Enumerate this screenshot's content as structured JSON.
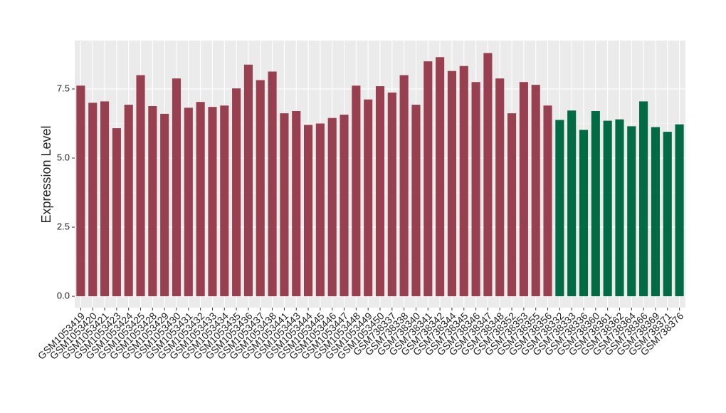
{
  "chart_data": {
    "type": "bar",
    "ylabel": "Expression Level",
    "categories": [
      "GSM1053419",
      "GSM1053420",
      "GSM1053421",
      "GSM1053423",
      "GSM1053424",
      "GSM1053425",
      "GSM1053428",
      "GSM1053429",
      "GSM1053430",
      "GSM1053431",
      "GSM1053432",
      "GSM1053433",
      "GSM1053434",
      "GSM1053435",
      "GSM1053436",
      "GSM1053437",
      "GSM1053438",
      "GSM1053441",
      "GSM1053443",
      "GSM1053444",
      "GSM1053445",
      "GSM1053446",
      "GSM1053447",
      "GSM1053448",
      "GSM1053449",
      "GSM1053450",
      "GSM738337",
      "GSM738338",
      "GSM738340",
      "GSM738341",
      "GSM738342",
      "GSM738344",
      "GSM738345",
      "GSM738346",
      "GSM738347",
      "GSM738348",
      "GSM738352",
      "GSM738353",
      "GSM738355",
      "GSM738356",
      "GSM738332",
      "GSM738333",
      "GSM738336",
      "GSM738360",
      "GSM738361",
      "GSM738362",
      "GSM738364",
      "GSM738366",
      "GSM738369",
      "GSM738371",
      "GSM738376"
    ],
    "values": [
      7.62,
      7.0,
      7.05,
      6.08,
      6.93,
      8.0,
      6.88,
      6.6,
      7.88,
      6.82,
      7.03,
      6.85,
      6.9,
      7.52,
      8.38,
      7.82,
      8.13,
      6.62,
      6.7,
      6.2,
      6.25,
      6.45,
      6.57,
      7.62,
      7.12,
      7.6,
      7.37,
      8.0,
      6.93,
      8.5,
      8.65,
      8.15,
      8.33,
      7.75,
      8.8,
      7.88,
      6.62,
      7.75,
      7.65,
      6.9,
      6.38,
      6.72,
      6.02,
      6.7,
      6.35,
      6.4,
      6.15,
      7.05,
      6.12,
      5.95,
      6.22
    ],
    "colors": [
      "#98404f",
      "#98404f",
      "#98404f",
      "#98404f",
      "#98404f",
      "#98404f",
      "#98404f",
      "#98404f",
      "#98404f",
      "#98404f",
      "#98404f",
      "#98404f",
      "#98404f",
      "#98404f",
      "#98404f",
      "#98404f",
      "#98404f",
      "#98404f",
      "#98404f",
      "#98404f",
      "#98404f",
      "#98404f",
      "#98404f",
      "#98404f",
      "#98404f",
      "#98404f",
      "#98404f",
      "#98404f",
      "#98404f",
      "#98404f",
      "#98404f",
      "#98404f",
      "#98404f",
      "#98404f",
      "#98404f",
      "#98404f",
      "#98404f",
      "#98404f",
      "#98404f",
      "#98404f",
      "#006b45",
      "#006b45",
      "#006b45",
      "#006b45",
      "#006b45",
      "#006b45",
      "#006b45",
      "#006b45",
      "#006b45",
      "#006b45",
      "#006b45"
    ],
    "ylim": [
      -0.41,
      9.25
    ],
    "yticks": [
      {
        "value": 0,
        "label": "0.0"
      },
      {
        "value": 2.5,
        "label": "2.5"
      },
      {
        "value": 5,
        "label": "5.0"
      },
      {
        "value": 7.5,
        "label": "7.5"
      }
    ],
    "grid": true
  }
}
